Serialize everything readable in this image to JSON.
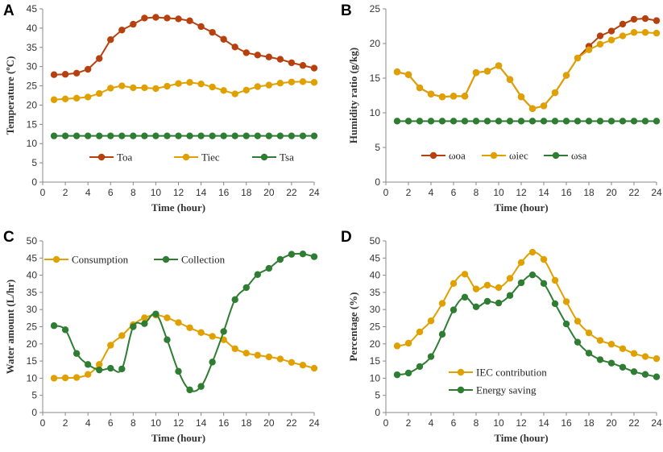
{
  "chart_data": [
    {
      "id": "A",
      "type": "line",
      "panel_label": "A",
      "xlabel": "Time (hour)",
      "ylabel": "Temperature (ºC)",
      "xlim": [
        0,
        24
      ],
      "ylim": [
        0,
        45
      ],
      "xticks": [
        0,
        2,
        4,
        6,
        8,
        10,
        12,
        14,
        16,
        18,
        20,
        22,
        24
      ],
      "yticks": [
        0,
        5,
        10,
        15,
        20,
        25,
        30,
        35,
        40,
        45
      ],
      "legend_position": "bottom-center",
      "x": [
        1,
        2,
        3,
        4,
        5,
        6,
        7,
        8,
        9,
        10,
        11,
        12,
        13,
        14,
        15,
        16,
        17,
        18,
        19,
        20,
        21,
        22,
        23,
        24
      ],
      "series": [
        {
          "name": "Toa",
          "color": "#b7410e",
          "values": [
            27.9,
            28.0,
            28.3,
            29.3,
            32.1,
            37.0,
            39.5,
            41.0,
            42.6,
            42.8,
            42.6,
            42.4,
            41.9,
            40.4,
            38.9,
            37.1,
            35.1,
            33.6,
            33.0,
            32.5,
            31.9,
            31.0,
            30.3,
            29.6
          ]
        },
        {
          "name": "Tiec",
          "color": "#e0a000",
          "values": [
            21.4,
            21.6,
            21.8,
            22.1,
            23.0,
            24.4,
            25.0,
            24.5,
            24.5,
            24.3,
            24.9,
            25.6,
            25.9,
            25.5,
            24.7,
            23.8,
            22.9,
            23.9,
            24.8,
            25.2,
            25.7,
            26.0,
            26.1,
            25.9
          ]
        },
        {
          "name": "Tsa",
          "color": "#2e7d32",
          "values": [
            12,
            12,
            12,
            12,
            12,
            12,
            12,
            12,
            12,
            12,
            12,
            12,
            12,
            12,
            12,
            12,
            12,
            12,
            12,
            12,
            12,
            12,
            12,
            12
          ]
        }
      ]
    },
    {
      "id": "B",
      "type": "line",
      "panel_label": "B",
      "xlabel": "Time (hour)",
      "ylabel": "Humidity ratio (g/kg)",
      "xlim": [
        0,
        24
      ],
      "ylim": [
        0,
        25
      ],
      "xticks": [
        0,
        2,
        4,
        6,
        8,
        10,
        12,
        14,
        16,
        18,
        20,
        22,
        24
      ],
      "yticks": [
        0,
        5,
        10,
        15,
        20,
        25
      ],
      "legend_position": "bottom-center",
      "x": [
        1,
        2,
        3,
        4,
        5,
        6,
        7,
        8,
        9,
        10,
        11,
        12,
        13,
        14,
        15,
        16,
        17,
        18,
        19,
        20,
        21,
        22,
        23,
        24
      ],
      "series": [
        {
          "name": "ωoa",
          "color": "#b7410e",
          "values": [
            15.9,
            15.5,
            13.6,
            12.7,
            12.3,
            12.4,
            12.4,
            15.8,
            16.0,
            16.8,
            14.8,
            12.3,
            10.6,
            11.0,
            12.9,
            15.4,
            17.9,
            19.6,
            21.1,
            21.8,
            22.8,
            23.5,
            23.6,
            23.3
          ]
        },
        {
          "name": "ωiec",
          "color": "#e0a000",
          "values": [
            15.9,
            15.5,
            13.6,
            12.7,
            12.3,
            12.4,
            12.4,
            15.8,
            16.0,
            16.8,
            14.8,
            12.3,
            10.6,
            11.0,
            12.9,
            15.4,
            17.9,
            19.1,
            19.9,
            20.5,
            21.1,
            21.6,
            21.6,
            21.5
          ]
        },
        {
          "name": "ωsa",
          "color": "#2e7d32",
          "values": [
            8.8,
            8.8,
            8.8,
            8.8,
            8.8,
            8.8,
            8.8,
            8.8,
            8.8,
            8.8,
            8.8,
            8.8,
            8.8,
            8.8,
            8.8,
            8.8,
            8.8,
            8.8,
            8.8,
            8.8,
            8.8,
            8.8,
            8.8,
            8.8
          ]
        }
      ]
    },
    {
      "id": "C",
      "type": "line",
      "panel_label": "C",
      "xlabel": "Time (hour)",
      "ylabel": "Water amount (L/hr)",
      "xlim": [
        0,
        24
      ],
      "ylim": [
        0,
        50
      ],
      "xticks": [
        0,
        2,
        4,
        6,
        8,
        10,
        12,
        14,
        16,
        18,
        20,
        22,
        24
      ],
      "yticks": [
        0,
        5,
        10,
        15,
        20,
        25,
        30,
        35,
        40,
        45,
        50
      ],
      "legend_position": "top",
      "smooth": true,
      "x": [
        1,
        2,
        3,
        4,
        5,
        6,
        7,
        8,
        9,
        10,
        11,
        12,
        13,
        14,
        15,
        16,
        17,
        18,
        19,
        20,
        21,
        22,
        23,
        24
      ],
      "series": [
        {
          "name": "Consumption",
          "color": "#e0a000",
          "values": [
            10.0,
            10.1,
            10.2,
            11.1,
            14.0,
            19.6,
            22.4,
            25.6,
            27.6,
            28.4,
            27.6,
            26.2,
            24.7,
            23.3,
            22.2,
            21.2,
            18.6,
            17.3,
            16.7,
            16.2,
            15.6,
            14.6,
            13.8,
            12.9
          ]
        },
        {
          "name": "Collection",
          "color": "#2e7d32",
          "values": [
            25.3,
            24.1,
            17.2,
            14.0,
            12.4,
            12.9,
            12.7,
            25.0,
            25.9,
            28.7,
            21.2,
            12.0,
            6.6,
            7.6,
            14.7,
            23.6,
            32.9,
            36.4,
            40.2,
            42.0,
            44.6,
            46.1,
            46.2,
            45.4
          ]
        }
      ]
    },
    {
      "id": "D",
      "type": "line",
      "panel_label": "D",
      "xlabel": "Time (hour)",
      "ylabel": "Percentage (%)",
      "xlim": [
        0,
        24
      ],
      "ylim": [
        0,
        50
      ],
      "xticks": [
        0,
        2,
        4,
        6,
        8,
        10,
        12,
        14,
        16,
        18,
        20,
        22,
        24
      ],
      "yticks": [
        0,
        5,
        10,
        15,
        20,
        25,
        30,
        35,
        40,
        45,
        50
      ],
      "legend_position": "bottom-center",
      "smooth": true,
      "x": [
        1,
        2,
        3,
        4,
        5,
        6,
        7,
        8,
        9,
        10,
        11,
        12,
        13,
        14,
        15,
        16,
        17,
        18,
        19,
        20,
        21,
        22,
        23,
        24
      ],
      "series": [
        {
          "name": "IEC contribution",
          "color": "#e0a000",
          "values": [
            19.4,
            20.2,
            23.5,
            26.7,
            31.8,
            37.6,
            40.3,
            36.0,
            37.1,
            36.4,
            39.1,
            43.7,
            46.7,
            44.6,
            38.5,
            32.3,
            26.6,
            23.2,
            21.0,
            19.9,
            18.6,
            17.2,
            16.3,
            15.7
          ]
        },
        {
          "name": "Energy saving",
          "color": "#2e7d32",
          "values": [
            11.0,
            11.5,
            13.4,
            16.3,
            22.8,
            29.9,
            33.6,
            30.8,
            32.4,
            31.9,
            34.1,
            37.8,
            40.1,
            37.6,
            31.7,
            25.8,
            20.5,
            17.3,
            15.4,
            14.4,
            13.2,
            11.9,
            11.1,
            10.4
          ]
        }
      ]
    }
  ]
}
